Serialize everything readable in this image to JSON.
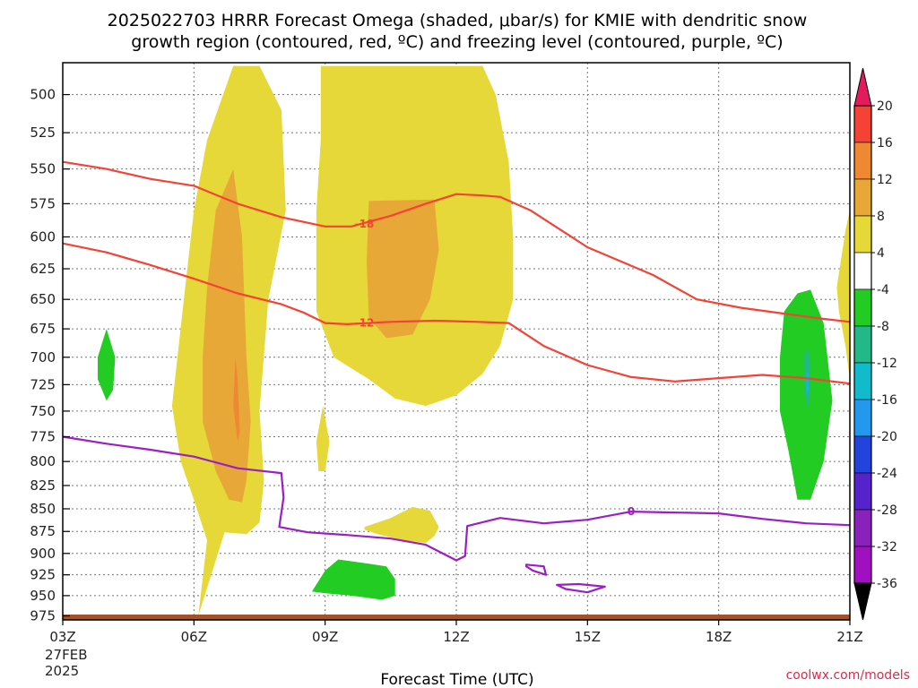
{
  "title": {
    "line1": "2025022703 HRRR Forecast Omega (shaded, μbar/s) for KMIE with dendritic snow",
    "line2": "growth region (contoured, red, ºC) and freezing level (contoured, purple, ºC)"
  },
  "credit": "coolwx.com/models",
  "chart_data": {
    "type": "area",
    "xlabel": "Forecast Time (UTC)",
    "x_ticks": [
      "03Z",
      "06Z",
      "09Z",
      "12Z",
      "15Z",
      "18Z",
      "21Z"
    ],
    "x_date_label": [
      "27FEB",
      "2025"
    ],
    "ylabel": "",
    "y_ticks": [
      500,
      525,
      550,
      575,
      600,
      625,
      650,
      675,
      700,
      725,
      750,
      775,
      800,
      825,
      850,
      875,
      900,
      925,
      950,
      975
    ],
    "y_log_scale": true,
    "ylim": [
      480,
      980
    ],
    "grid": true,
    "colorbar": {
      "units": "μbar/s",
      "tick_labels": [
        "20",
        "16",
        "12",
        "8",
        "4",
        "-4",
        "-8",
        "-12",
        "-16",
        "-20",
        "-24",
        "-28",
        "-32",
        "-36"
      ],
      "colors": [
        "#e31a5c",
        "#f44336",
        "#ee8833",
        "#e8a838",
        "#e6d838",
        "#ffffff",
        "#22cc22",
        "#22b888",
        "#11bbcc",
        "#2299ee",
        "#2244dd",
        "#5522cc",
        "#8822bb",
        "#a010c0",
        "#aaaaaa",
        "#000000"
      ]
    },
    "contours": [
      {
        "label": "-18",
        "color": "#f44336",
        "points": [
          [
            3.0,
            545
          ],
          [
            4.0,
            550
          ],
          [
            5.0,
            557
          ],
          [
            6.0,
            562
          ],
          [
            7.0,
            575
          ],
          [
            8.0,
            585
          ],
          [
            9.0,
            592
          ],
          [
            9.6,
            592
          ],
          [
            10.5,
            584
          ],
          [
            11.3,
            575
          ],
          [
            12.0,
            568
          ],
          [
            12.6,
            569
          ],
          [
            13.0,
            570
          ],
          [
            13.7,
            580
          ],
          [
            15.0,
            608
          ],
          [
            16.5,
            630
          ],
          [
            17.5,
            650
          ],
          [
            18.5,
            657
          ],
          [
            19.5,
            662
          ],
          [
            20.3,
            666
          ],
          [
            21.0,
            669
          ]
        ]
      },
      {
        "label": "-12",
        "color": "#f44336",
        "points": [
          [
            3.0,
            605
          ],
          [
            4.0,
            612
          ],
          [
            5.0,
            622
          ],
          [
            6.0,
            633
          ],
          [
            7.0,
            645
          ],
          [
            8.0,
            654
          ],
          [
            8.5,
            661
          ],
          [
            9.0,
            670
          ],
          [
            9.5,
            671
          ],
          [
            10.5,
            669
          ],
          [
            11.5,
            668
          ],
          [
            12.5,
            669
          ],
          [
            13.2,
            670
          ],
          [
            14.0,
            690
          ],
          [
            15.0,
            707
          ],
          [
            16.0,
            718
          ],
          [
            17.0,
            722
          ],
          [
            18.0,
            719
          ],
          [
            19.0,
            716
          ],
          [
            20.0,
            719
          ],
          [
            21.0,
            724
          ]
        ]
      },
      {
        "label": "0",
        "color": "#9b1fc4",
        "points": [
          [
            3.0,
            775
          ],
          [
            4.0,
            782
          ],
          [
            5.0,
            788
          ],
          [
            6.0,
            795
          ],
          [
            7.0,
            807
          ],
          [
            8.0,
            812
          ],
          [
            8.05,
            838
          ],
          [
            7.95,
            870
          ],
          [
            8.6,
            876
          ],
          [
            9.5,
            879
          ],
          [
            10.5,
            883
          ],
          [
            11.3,
            890
          ],
          [
            12.0,
            908
          ],
          [
            12.2,
            903
          ],
          [
            12.25,
            869
          ],
          [
            13.0,
            860
          ],
          [
            14.0,
            866
          ],
          [
            15.0,
            862
          ],
          [
            16.0,
            853
          ],
          [
            17.0,
            854
          ],
          [
            18.0,
            855
          ],
          [
            19.0,
            861
          ],
          [
            20.0,
            866
          ],
          [
            21.0,
            868
          ]
        ]
      },
      {
        "color": "#9b1fc4",
        "closed": true,
        "points": [
          [
            13.6,
            913
          ],
          [
            14.0,
            915
          ],
          [
            14.05,
            925
          ],
          [
            13.75,
            920
          ],
          [
            13.6,
            915
          ]
        ]
      },
      {
        "color": "#9b1fc4",
        "closed": true,
        "points": [
          [
            14.3,
            937
          ],
          [
            14.8,
            936
          ],
          [
            15.4,
            939
          ],
          [
            15.0,
            946
          ],
          [
            14.5,
            942
          ]
        ]
      }
    ],
    "shaded_regions": [
      {
        "level": "4 to 8",
        "color": "#e6d838",
        "points": [
          [
            4.0,
            930
          ],
          [
            5.6,
            990
          ],
          [
            6.2,
            980
          ],
          [
            6.6,
            940
          ],
          [
            7.0,
            750
          ],
          [
            7.5,
            652
          ],
          [
            7.7,
            560
          ],
          [
            8.0,
            538
          ],
          [
            8.6,
            560
          ],
          [
            8.6,
            700
          ],
          [
            8.3,
            820
          ],
          [
            8.0,
            850
          ],
          [
            7.6,
            890
          ],
          [
            7.0,
            870
          ],
          [
            6.5,
            800
          ],
          [
            6.0,
            745
          ],
          [
            5.8,
            700
          ]
        ]
      },
      {
        "level": "4 to 8",
        "color": "#e6d838",
        "points": [
          [
            8.9,
            480
          ],
          [
            12.6,
            480
          ],
          [
            13.2,
            560
          ],
          [
            13.0,
            700
          ],
          [
            12.5,
            770
          ],
          [
            11.5,
            830
          ],
          [
            10.6,
            890
          ],
          [
            9.6,
            740
          ],
          [
            8.8,
            680
          ]
        ]
      }
    ]
  }
}
